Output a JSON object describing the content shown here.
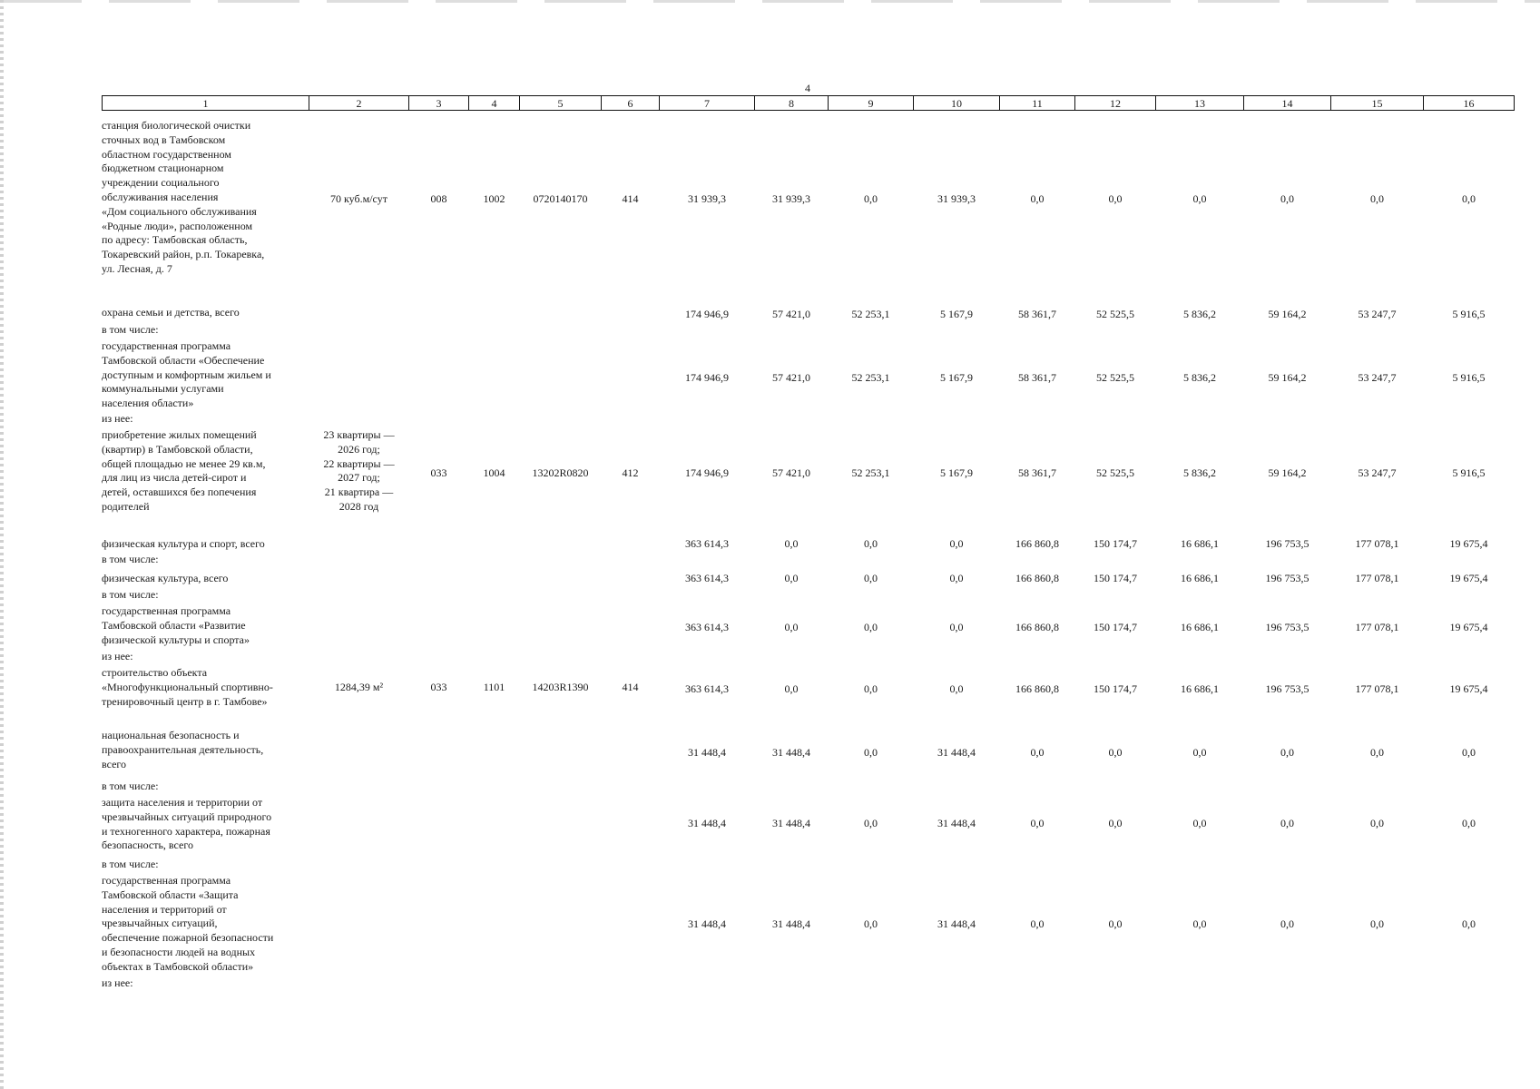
{
  "page_number": "4",
  "header_columns": [
    "1",
    "2",
    "3",
    "4",
    "5",
    "6",
    "7",
    "8",
    "9",
    "10",
    "11",
    "12",
    "13",
    "14",
    "15",
    "16"
  ],
  "rows": [
    {
      "name": "станция биологической очистки\nсточных вод в Тамбовском\nобластном государственном\nбюджетном стационарном\nучреждении социального\nобслуживания населения\n«Дом социального обслуживания\n«Родные люди», расположенном\nпо адресу: Тамбовская область,\nТокаревский район, р.п. Токаревка,\nул. Лесная, д. 7",
      "capacity": "70 куб.м/сут",
      "c3": "008",
      "c4": "1002",
      "c5": "0720140170",
      "c6": "414",
      "values": [
        "31 939,3",
        "31 939,3",
        "0,0",
        "31 939,3",
        "0,0",
        "0,0",
        "0,0",
        "0,0",
        "0,0",
        "0,0"
      ]
    },
    {
      "name": "охрана семьи и детства, всего",
      "capacity": "",
      "c3": "",
      "c4": "",
      "c5": "",
      "c6": "",
      "values": [
        "174 946,9",
        "57 421,0",
        "52 253,1",
        "5 167,9",
        "58 361,7",
        "52 525,5",
        "5 836,2",
        "59 164,2",
        "53 247,7",
        "5 916,5"
      ]
    },
    {
      "name": "в том числе:"
    },
    {
      "name": "государственная программа\nТамбовской области «Обеспечение\nдоступным и комфортным жильем и\nкоммунальными услугами\nнаселения области»",
      "capacity": "",
      "c3": "",
      "c4": "",
      "c5": "",
      "c6": "",
      "values": [
        "174 946,9",
        "57 421,0",
        "52 253,1",
        "5 167,9",
        "58 361,7",
        "52 525,5",
        "5 836,2",
        "59 164,2",
        "53 247,7",
        "5 916,5"
      ]
    },
    {
      "name": "из нее:"
    },
    {
      "name": "приобретение жилых помещений\n(квартир) в Тамбовской области,\nобщей площадью не менее 29 кв.м,\nдля лиц из числа детей-сирот и\nдетей, оставшихся без попечения\nродителей",
      "capacity": "23 квартиры —\n2026 год;\n22 квартиры —\n2027 год;\n21 квартира —\n2028 год",
      "c3": "033",
      "c4": "1004",
      "c5": "13202R0820",
      "c6": "412",
      "values": [
        "174 946,9",
        "57 421,0",
        "52 253,1",
        "5 167,9",
        "58 361,7",
        "52 525,5",
        "5 836,2",
        "59 164,2",
        "53 247,7",
        "5 916,5"
      ]
    },
    {
      "name": "физическая культура и спорт, всего",
      "capacity": "",
      "c3": "",
      "c4": "",
      "c5": "",
      "c6": "",
      "values": [
        "363 614,3",
        "0,0",
        "0,0",
        "0,0",
        "166 860,8",
        "150 174,7",
        "16 686,1",
        "196 753,5",
        "177 078,1",
        "19 675,4"
      ]
    },
    {
      "name": "в том числе:"
    },
    {
      "name": "физическая культура, всего",
      "capacity": "",
      "c3": "",
      "c4": "",
      "c5": "",
      "c6": "",
      "values": [
        "363 614,3",
        "0,0",
        "0,0",
        "0,0",
        "166 860,8",
        "150 174,7",
        "16 686,1",
        "196 753,5",
        "177 078,1",
        "19 675,4"
      ]
    },
    {
      "name": "в том числе:"
    },
    {
      "name": "государственная программа\nТамбовской области «Развитие\nфизической культуры и спорта»",
      "capacity": "",
      "c3": "",
      "c4": "",
      "c5": "",
      "c6": "",
      "values": [
        "363 614,3",
        "0,0",
        "0,0",
        "0,0",
        "166 860,8",
        "150 174,7",
        "16 686,1",
        "196 753,5",
        "177 078,1",
        "19 675,4"
      ]
    },
    {
      "name": "из нее:"
    },
    {
      "name": "строительство объекта\n«Многофункциональный спортивно-\nтренировочный центр в г. Тамбове»",
      "capacity": "1284,39 м²",
      "c3": "033",
      "c4": "1101",
      "c5": "14203R1390",
      "c6": "414",
      "values": [
        "363 614,3",
        "0,0",
        "0,0",
        "0,0",
        "166 860,8",
        "150 174,7",
        "16 686,1",
        "196 753,5",
        "177 078,1",
        "19 675,4"
      ]
    },
    {
      "name": "национальная безопасность и\nправоохранительная деятельность,\nвсего",
      "capacity": "",
      "c3": "",
      "c4": "",
      "c5": "",
      "c6": "",
      "values": [
        "31 448,4",
        "31 448,4",
        "0,0",
        "31 448,4",
        "0,0",
        "0,0",
        "0,0",
        "0,0",
        "0,0",
        "0,0"
      ]
    },
    {
      "name": "в том числе:"
    },
    {
      "name": "защита населения и территории от\nчрезвычайных ситуаций природного\nи техногенного характера, пожарная\nбезопасность, всего",
      "capacity": "",
      "c3": "",
      "c4": "",
      "c5": "",
      "c6": "",
      "values": [
        "31 448,4",
        "31 448,4",
        "0,0",
        "31 448,4",
        "0,0",
        "0,0",
        "0,0",
        "0,0",
        "0,0",
        "0,0"
      ]
    },
    {
      "name": "в том числе:"
    },
    {
      "name": "государственная программа\nТамбовской области «Защита\nнаселения и территорий от\nчрезвычайных ситуаций,\nобеспечение пожарной безопасности\nи безопасности людей на водных\nобъектах в Тамбовской области»",
      "capacity": "",
      "c3": "",
      "c4": "",
      "c5": "",
      "c6": "",
      "values": [
        "31 448,4",
        "31 448,4",
        "0,0",
        "31 448,4",
        "0,0",
        "0,0",
        "0,0",
        "0,0",
        "0,0",
        "0,0"
      ]
    },
    {
      "name": "из нее:"
    }
  ]
}
